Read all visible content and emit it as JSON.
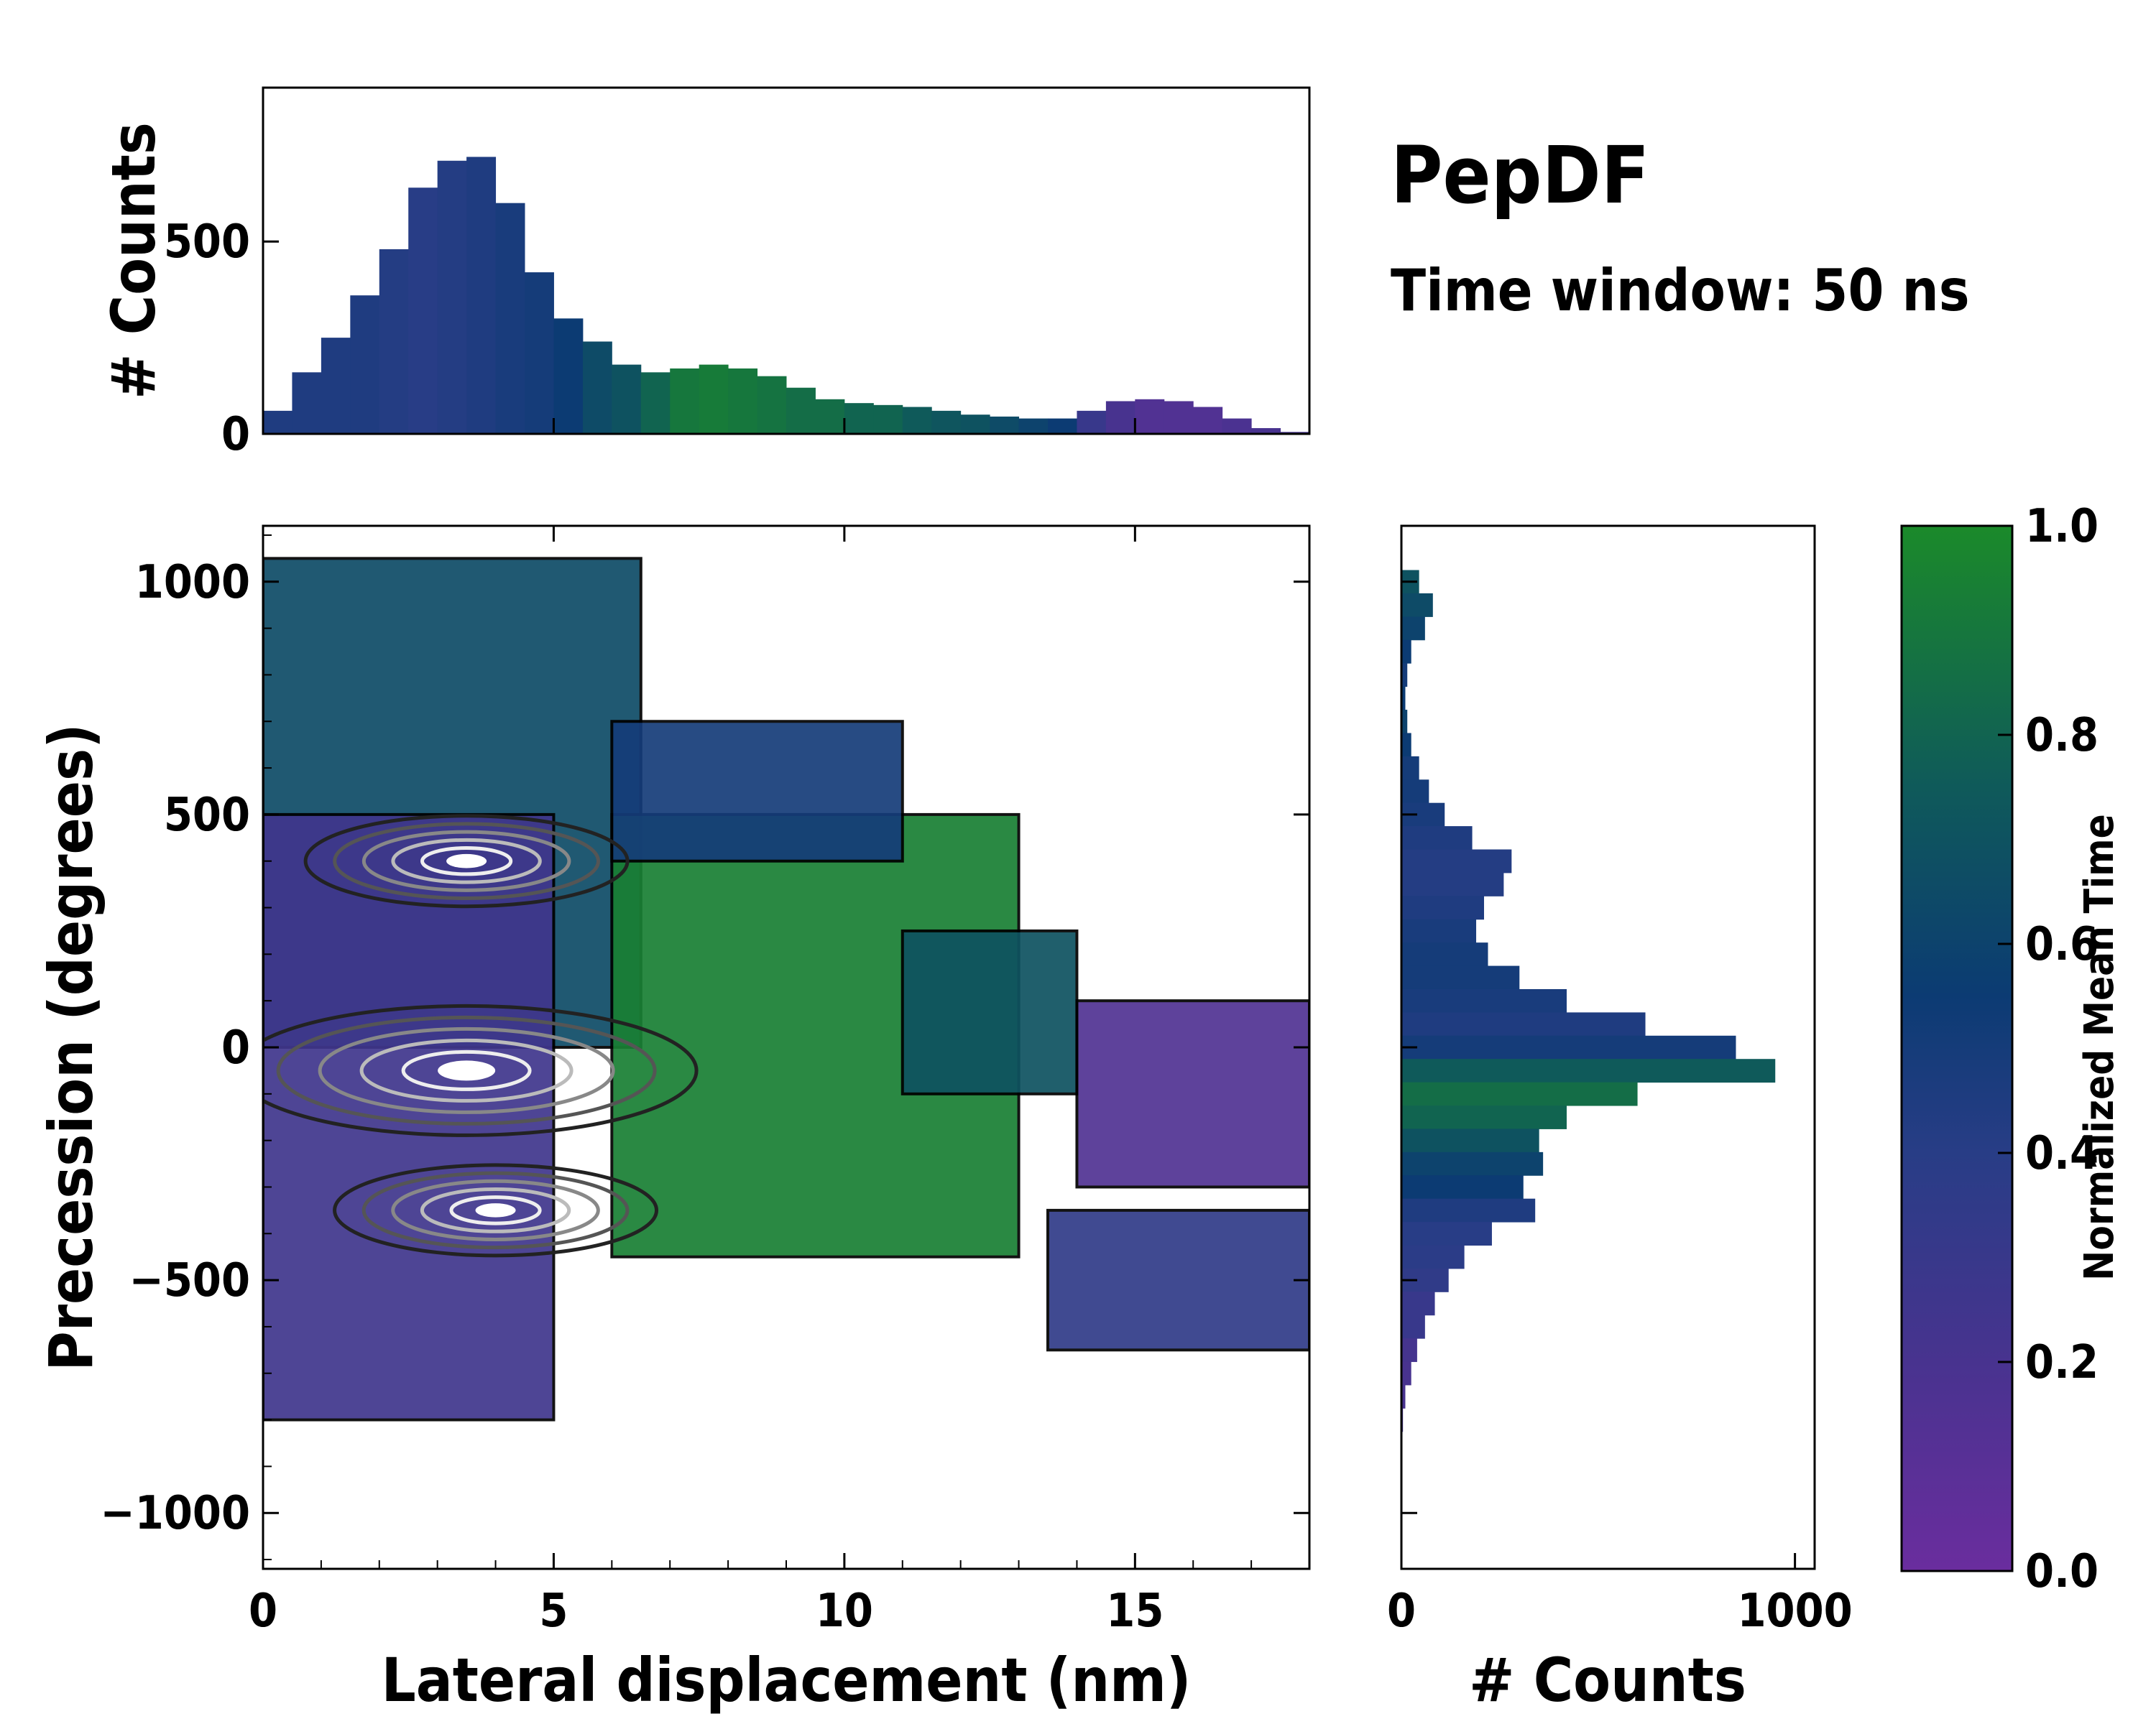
{
  "chart_data": {
    "type": "heatmap",
    "title": "PepDF",
    "subtitle": "Time window: 50 ns",
    "main": {
      "xlabel": "Lateral displacement (nm)",
      "ylabel": "Precession (degrees)",
      "xlim": [
        0,
        18
      ],
      "ylim": [
        -1120,
        1120
      ],
      "xticks": [
        0,
        5,
        10,
        15
      ],
      "yticks": [
        -1000,
        -500,
        0,
        500,
        1000
      ],
      "ytick_labels": [
        "−1000",
        "−500",
        "0",
        "500",
        "1000"
      ],
      "contours": "black outline at low density, grey-to-white contours at high density",
      "density_peaks": [
        {
          "x": 3.5,
          "y": -50,
          "label": "highest density"
        },
        {
          "x": 3.5,
          "y": 400,
          "label": "secondary peak"
        },
        {
          "x": 4.0,
          "y": -350,
          "label": "tertiary peak"
        }
      ],
      "regions": [
        {
          "x_range": [
            0,
            6.5
          ],
          "y_range": [
            0,
            1050
          ],
          "mean_time": 0.65,
          "note": "upper-left teal band"
        },
        {
          "x_range": [
            0,
            5
          ],
          "y_range": [
            -800,
            500
          ],
          "mean_time": 0.25,
          "note": "dense purple/blue core"
        },
        {
          "x_range": [
            6,
            13
          ],
          "y_range": [
            -450,
            500
          ],
          "mean_time": 0.95,
          "note": "green middle region"
        },
        {
          "x_range": [
            6,
            11
          ],
          "y_range": [
            400,
            700
          ],
          "mean_time": 0.5,
          "note": "blue upper arm"
        },
        {
          "x_range": [
            11,
            14
          ],
          "y_range": [
            -100,
            250
          ],
          "mean_time": 0.7,
          "note": "teal right arm"
        },
        {
          "x_range": [
            14,
            18
          ],
          "y_range": [
            -300,
            100
          ],
          "mean_time": 0.15,
          "note": "purple far right"
        },
        {
          "x_range": [
            13.5,
            18
          ],
          "y_range": [
            -650,
            -350
          ],
          "mean_time": 0.35,
          "note": "blue lower right"
        }
      ]
    },
    "top_histogram": {
      "ylabel": "# Counts",
      "xlim": [
        0,
        18
      ],
      "ylim": [
        0,
        900
      ],
      "yticks": [
        0,
        500
      ],
      "x": [
        0.25,
        0.75,
        1.25,
        1.75,
        2.25,
        2.75,
        3.25,
        3.75,
        4.25,
        4.75,
        5.25,
        5.75,
        6.25,
        6.75,
        7.25,
        7.75,
        8.25,
        8.75,
        9.25,
        9.75,
        10.25,
        10.75,
        11.25,
        11.75,
        12.25,
        12.75,
        13.25,
        13.75,
        14.25,
        14.75,
        15.25,
        15.75,
        16.25,
        16.75,
        17.25,
        17.75
      ],
      "values": [
        60,
        160,
        250,
        360,
        480,
        640,
        710,
        720,
        600,
        420,
        300,
        240,
        180,
        160,
        170,
        180,
        170,
        150,
        120,
        90,
        80,
        75,
        70,
        60,
        50,
        45,
        40,
        40,
        60,
        85,
        90,
        85,
        70,
        40,
        15,
        5
      ],
      "mean_time": [
        0.45,
        0.45,
        0.45,
        0.45,
        0.42,
        0.4,
        0.42,
        0.45,
        0.48,
        0.5,
        0.55,
        0.65,
        0.7,
        0.8,
        0.9,
        0.92,
        0.9,
        0.88,
        0.85,
        0.85,
        0.8,
        0.8,
        0.75,
        0.72,
        0.7,
        0.65,
        0.6,
        0.55,
        0.3,
        0.2,
        0.15,
        0.15,
        0.15,
        0.18,
        0.2,
        0.2
      ]
    },
    "right_histogram": {
      "xlabel": "# Counts",
      "xlim": [
        0,
        1050
      ],
      "ylim": [
        -1120,
        1120
      ],
      "xticks": [
        0,
        1000
      ],
      "y": [
        1000,
        950,
        900,
        850,
        800,
        750,
        700,
        650,
        600,
        550,
        500,
        450,
        400,
        350,
        300,
        250,
        200,
        150,
        100,
        50,
        0,
        -50,
        -100,
        -150,
        -200,
        -250,
        -300,
        -350,
        -400,
        -450,
        -500,
        -550,
        -600,
        -650,
        -700,
        -750,
        -800
      ],
      "values": [
        45,
        80,
        60,
        25,
        15,
        10,
        15,
        25,
        45,
        70,
        110,
        180,
        280,
        260,
        210,
        190,
        220,
        300,
        420,
        620,
        850,
        950,
        600,
        420,
        350,
        360,
        310,
        340,
        230,
        160,
        120,
        85,
        60,
        40,
        25,
        10,
        4
      ],
      "mean_time": [
        0.7,
        0.65,
        0.6,
        0.55,
        0.5,
        0.55,
        0.6,
        0.55,
        0.5,
        0.5,
        0.48,
        0.45,
        0.42,
        0.42,
        0.45,
        0.48,
        0.5,
        0.5,
        0.48,
        0.45,
        0.5,
        0.75,
        0.85,
        0.8,
        0.7,
        0.6,
        0.55,
        0.45,
        0.4,
        0.38,
        0.35,
        0.3,
        0.3,
        0.22,
        0.2,
        0.2,
        0.2
      ]
    },
    "colorbar": {
      "label": "Normalized Mean Time",
      "range": [
        0,
        1
      ],
      "ticks": [
        "0.0",
        "0.2",
        "0.4",
        "0.6",
        "0.8",
        "1.0"
      ],
      "colors": [
        "#6a2d9e",
        "#48338f",
        "#283d86",
        "#0c3b73",
        "#0f5a5a",
        "#1b8a2a"
      ]
    }
  }
}
